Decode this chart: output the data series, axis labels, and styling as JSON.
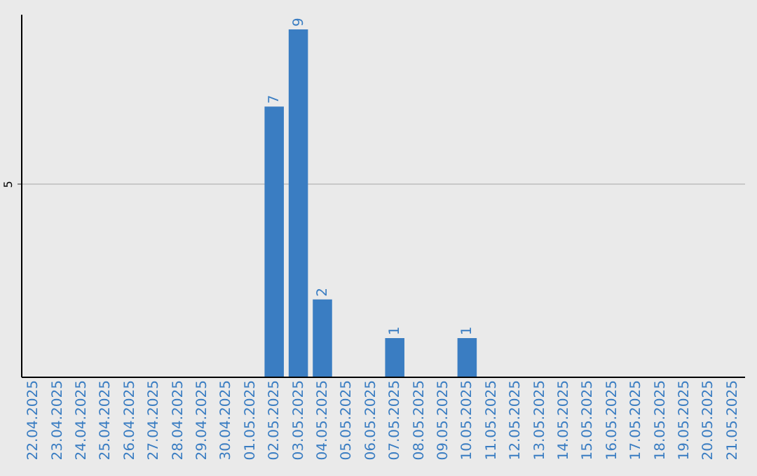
{
  "chart_data": {
    "type": "bar",
    "categories": [
      "22.04.2025",
      "23.04.2025",
      "24.04.2025",
      "25.04.2025",
      "26.04.2025",
      "27.04.2025",
      "28.04.2025",
      "29.04.2025",
      "30.04.2025",
      "01.05.2025",
      "02.05.2025",
      "03.05.2025",
      "04.05.2025",
      "05.05.2025",
      "06.05.2025",
      "07.05.2025",
      "08.05.2025",
      "09.05.2025",
      "10.05.2025",
      "11.05.2025",
      "12.05.2025",
      "13.05.2025",
      "14.05.2025",
      "15.05.2025",
      "16.05.2025",
      "17.05.2025",
      "18.05.2025",
      "19.05.2025",
      "20.05.2025",
      "21.05.2025"
    ],
    "values": [
      0,
      0,
      0,
      0,
      0,
      0,
      0,
      0,
      0,
      0,
      7,
      9,
      2,
      0,
      0,
      1,
      0,
      0,
      1,
      0,
      0,
      0,
      0,
      0,
      0,
      0,
      0,
      0,
      0,
      0
    ],
    "value_labels": [
      null,
      null,
      null,
      null,
      null,
      null,
      null,
      null,
      null,
      null,
      "7",
      "9",
      "2",
      null,
      null,
      "1",
      null,
      null,
      "1",
      null,
      null,
      null,
      null,
      null,
      null,
      null,
      null,
      null,
      null,
      null
    ],
    "color": "#3a7dc2",
    "ylim": [
      0,
      9.4
    ],
    "yticks": [
      5
    ],
    "grid": "y"
  }
}
